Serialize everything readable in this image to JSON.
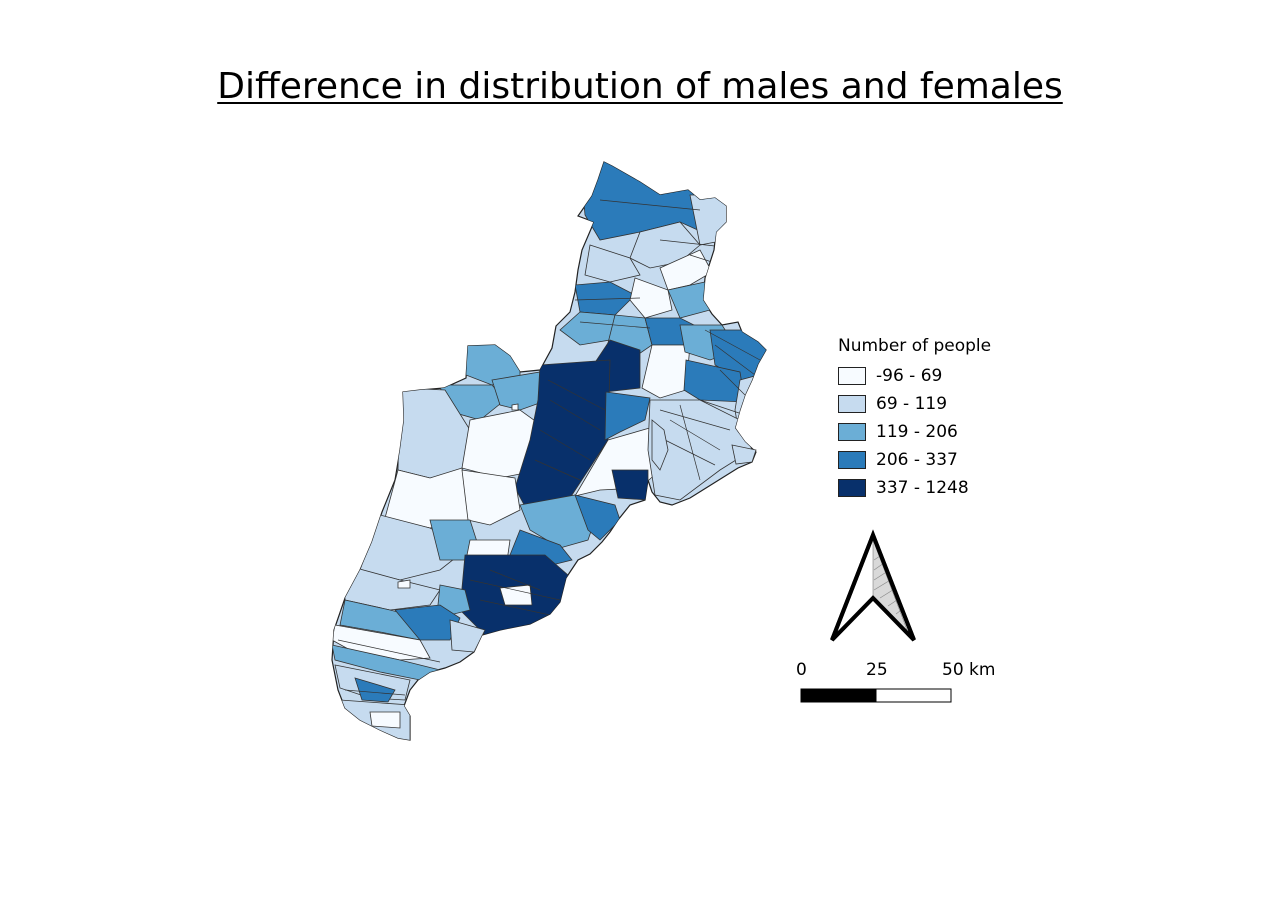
{
  "title": "Difference in distribution of males and females",
  "legend": {
    "title": "Number of people",
    "classes": [
      {
        "label": "-96 - 69",
        "color": "#f7fbff"
      },
      {
        "label": "69 - 119",
        "color": "#c6dbef"
      },
      {
        "label": "119 - 206",
        "color": "#6baed6"
      },
      {
        "label": "206 - 337",
        "color": "#2b7bba"
      },
      {
        "label": "337 - 1248",
        "color": "#08306b"
      }
    ]
  },
  "scale_bar": {
    "labels": [
      "0",
      "25",
      "50 km"
    ]
  },
  "north_arrow_icon": "north-arrow-icon"
}
